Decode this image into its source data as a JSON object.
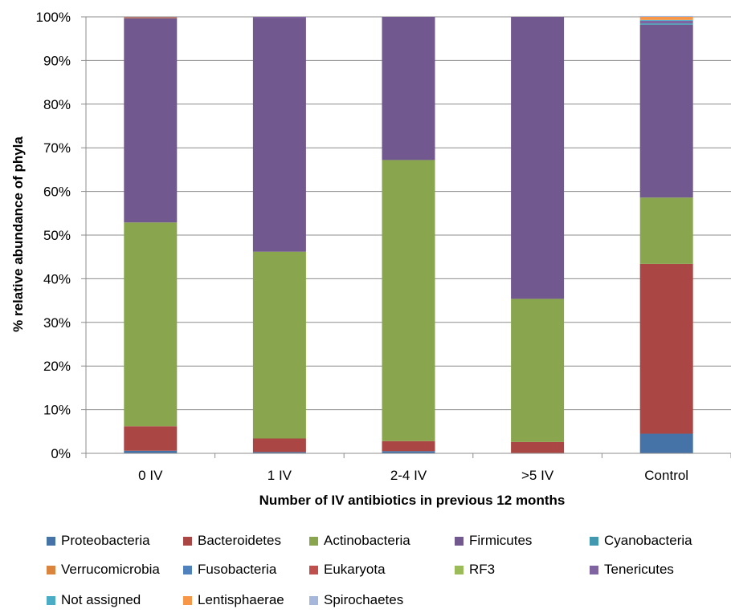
{
  "chart_data": {
    "type": "bar",
    "stacked": true,
    "title": "",
    "xlabel": "Number of IV antibiotics in previous 12 months",
    "ylabel": "% relative abundance of phyla",
    "ylim": [
      0,
      100
    ],
    "y_ticks": [
      "0%",
      "10%",
      "20%",
      "30%",
      "40%",
      "50%",
      "60%",
      "70%",
      "80%",
      "90%",
      "100%"
    ],
    "grid": true,
    "legend_position": "bottom",
    "categories": [
      "0 IV",
      "1 IV",
      "2-4 IV",
      ">5 IV",
      "Control"
    ],
    "series": [
      {
        "name": "Proteobacteria",
        "color": "#4572A7",
        "values": [
          0.6,
          0.3,
          0.5,
          0.1,
          4.5
        ]
      },
      {
        "name": "Bacteroidetes",
        "color": "#AA4643",
        "values": [
          5.6,
          3.1,
          2.3,
          2.5,
          38.9
        ]
      },
      {
        "name": "Actinobacteria",
        "color": "#89A54E",
        "values": [
          46.7,
          42.8,
          64.4,
          32.8,
          15.2
        ]
      },
      {
        "name": "Firmicutes",
        "color": "#71588F",
        "values": [
          46.8,
          53.6,
          32.8,
          64.6,
          39.6
        ]
      },
      {
        "name": "Cyanobacteria",
        "color": "#4198AF",
        "values": [
          0,
          0,
          0,
          0,
          0.3
        ]
      },
      {
        "name": "Verrucomicrobia",
        "color": "#DB843D",
        "values": [
          0.2,
          0,
          0,
          0,
          0
        ]
      },
      {
        "name": "Fusobacteria",
        "color": "#4F81BD",
        "values": [
          0,
          0,
          0,
          0,
          0
        ]
      },
      {
        "name": "Eukaryota",
        "color": "#C0504D",
        "values": [
          0,
          0,
          0,
          0,
          0
        ]
      },
      {
        "name": "RF3",
        "color": "#9BBB59",
        "values": [
          0,
          0,
          0,
          0,
          0
        ]
      },
      {
        "name": "Tenericutes",
        "color": "#8064A2",
        "values": [
          0.1,
          0.2,
          0,
          0,
          0.6
        ]
      },
      {
        "name": "Not assigned",
        "color": "#4BACC6",
        "values": [
          0,
          0,
          0,
          0,
          0.2
        ]
      },
      {
        "name": "Lentisphaerae",
        "color": "#F79646",
        "values": [
          0,
          0,
          0,
          0,
          0.7
        ]
      },
      {
        "name": "Spirochaetes",
        "color": "#A5B8D9",
        "values": [
          0,
          0,
          0,
          0,
          0.2
        ]
      }
    ]
  }
}
